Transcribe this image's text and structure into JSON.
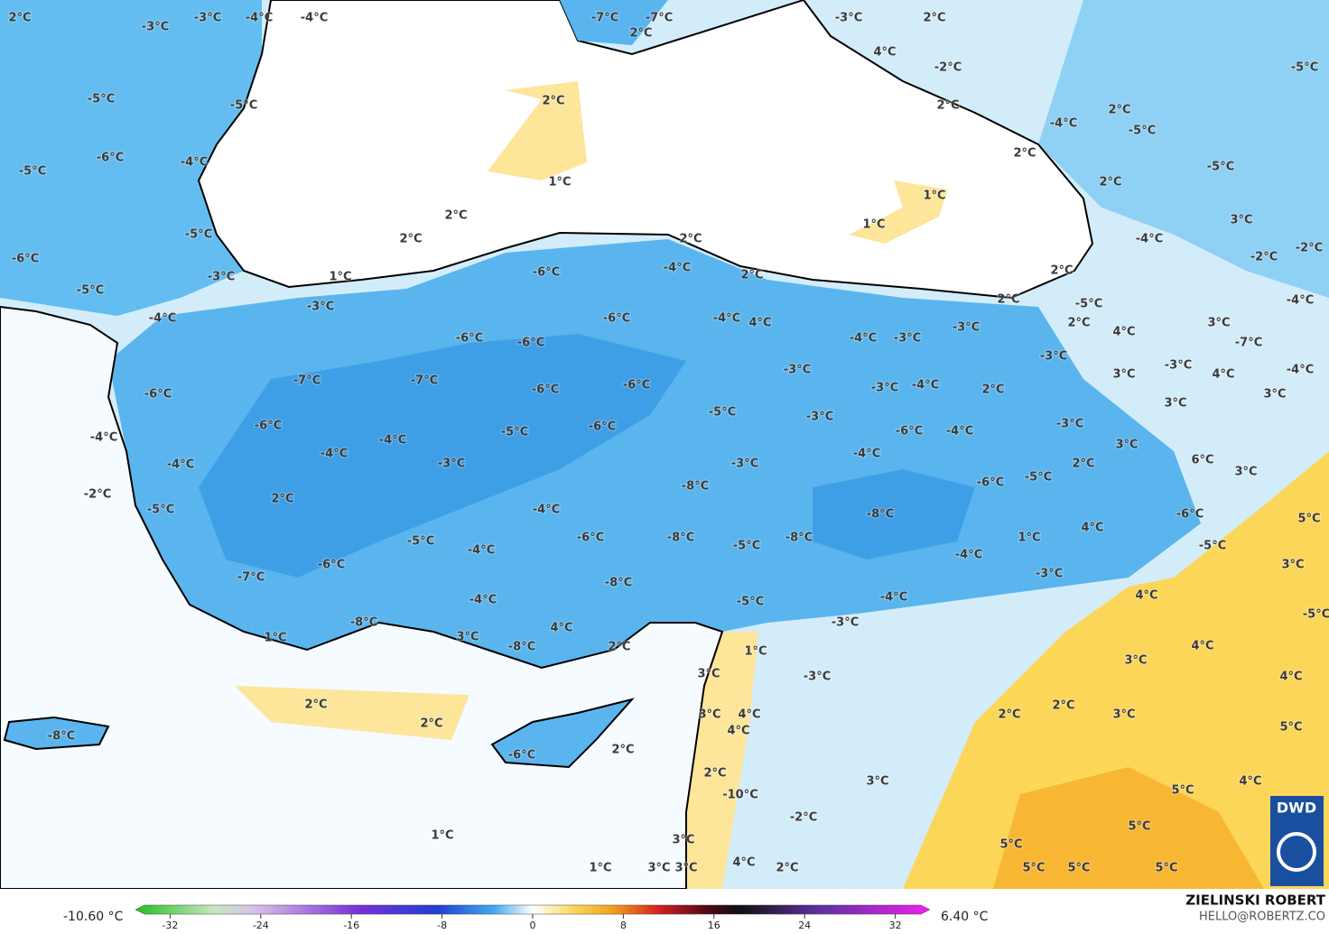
{
  "map_labels": [
    "2°C",
    "-3°C",
    "-4°C",
    "-4°C",
    "-3°C",
    "-7°C",
    "-7°C",
    "2°C",
    "-3°C",
    "2°C",
    "4°C",
    "-2°C",
    "-5°C",
    "-5°C",
    "-5°C",
    "2°C",
    "2°C",
    "2°C",
    "-4°C",
    "-5°C",
    "2°C",
    "-6°C",
    "-4°C",
    "-5°C",
    "-5°C",
    "1°C",
    "2°C",
    "1°C",
    "2°C",
    "1°C",
    "3°C",
    "-5°C",
    "2°C",
    "2°C",
    "-4°C",
    "-2°C",
    "-6°C",
    "-2°C",
    "-4°C",
    "-6°C",
    "2°C",
    "2°C",
    "1°C",
    "-3°C",
    "-5°C",
    "2°C",
    "-3°C",
    "-4°C",
    "-5°C",
    "-4°C",
    "-6°C",
    "-4°C",
    "4°C",
    "2°C",
    "3°C",
    "-3°C",
    "4°C",
    "-6°C",
    "-6°C",
    "-4°C",
    "-3°C",
    "-7°C",
    "-3°C",
    "-3°C",
    "-3°C",
    "-4°C",
    "4°C",
    "3°C",
    "-7°C",
    "-7°C",
    "-3°C",
    "-4°C",
    "-6°C",
    "-6°C",
    "2°C",
    "-6°C",
    "3°C",
    "3°C",
    "-5°C",
    "-3°C",
    "-6°C",
    "-6°C",
    "-3°C",
    "-6°C",
    "-4°C",
    "-5°C",
    "-4°C",
    "-4°C",
    "3°C",
    "-4°C",
    "-4°C",
    "6°C",
    "-3°C",
    "-4°C",
    "-3°C",
    "2°C",
    "3°C",
    "-5°C",
    "-6°C",
    "-8°C",
    "-2°C",
    "2°C",
    "-5°C",
    "-4°C",
    "-8°C",
    "-6°C",
    "5°C",
    "4°C",
    "1°C",
    "-8°C",
    "-6°C",
    "-8°C",
    "-5°C",
    "-5°C",
    "-5°C",
    "-4°C",
    "-4°C",
    "-6°C",
    "3°C",
    "-3°C",
    "-7°C",
    "-8°C",
    "4°C",
    "-4°C",
    "-4°C",
    "-5°C",
    "-5°C",
    "-3°C",
    "-8°C",
    "4°C",
    "1°C",
    "3°C",
    "4°C",
    "-8°C",
    "2°C",
    "1°C",
    "3°C",
    "3°C",
    "4°C",
    "-3°C",
    "2°C",
    "2°C",
    "2°C",
    "3°C",
    "3°C",
    "4°C",
    "2°C",
    "5°C",
    "4°C",
    "-8°C",
    "-6°C",
    "2°C",
    "2°C",
    "3°C",
    "4°C",
    "5°C",
    "-10°C",
    "-2°C",
    "5°C",
    "1°C",
    "3°C",
    "5°C",
    "1°C",
    "3°C",
    "3°C",
    "4°C",
    "2°C",
    "5°C",
    "5°C",
    "5°C"
  ],
  "colorbar": {
    "ticks": [
      -32,
      -24,
      -16,
      -8,
      0,
      8,
      16,
      24,
      32
    ],
    "min_label": "-10.60 °C",
    "max_label": "6.40 °C"
  },
  "credit": {
    "author": "ZIELINSKI ROBERT",
    "email": "HELLO@ROBERTZ.CO"
  },
  "logo": "DWD"
}
